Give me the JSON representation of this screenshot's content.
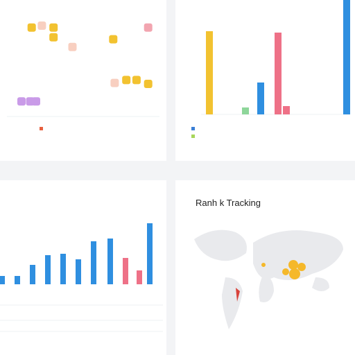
{
  "chart_data": [
    {
      "type": "scatter",
      "series": [
        {
          "color": "#f2c230",
          "x": [
            17,
            32,
            32,
            73,
            82,
            89,
            97
          ],
          "y": [
            93,
            93,
            83,
            81,
            39,
            39,
            35
          ]
        },
        {
          "color": "#f8cfc0",
          "x": [
            24,
            45,
            74
          ],
          "y": [
            95,
            73,
            36
          ]
        },
        {
          "color": "#f2a5b0",
          "x": [
            97
          ],
          "y": [
            93
          ]
        },
        {
          "color": "#c99be8",
          "x": [
            10,
            16,
            20
          ],
          "y": [
            17,
            17,
            17
          ]
        }
      ]
    },
    {
      "type": "bar",
      "values": [
        120,
        10,
        46,
        118,
        12,
        165
      ],
      "colors": [
        "#f2c230",
        "#8ed69a",
        "#2f8fe0",
        "#ee7187",
        "#ee7187",
        "#2f8fe0"
      ]
    },
    {
      "type": "bar",
      "values": [
        12,
        12,
        28,
        42,
        44,
        36,
        62,
        66,
        38,
        20,
        88
      ],
      "colors": [
        "#2f8fe0",
        "#2f8fe0",
        "#2f8fe0",
        "#2f8fe0",
        "#2f8fe0",
        "#2f8fe0",
        "#2f8fe0",
        "#2f8fe0",
        "#ee7187",
        "#ee7187",
        "#2f8fe0"
      ]
    },
    {
      "type": "map",
      "title": "Ranh k Tracking"
    }
  ]
}
